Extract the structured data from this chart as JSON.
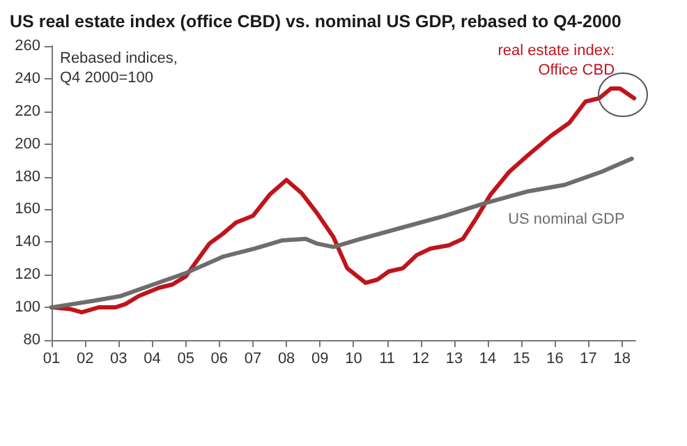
{
  "chart_data": {
    "type": "line",
    "title": "US real estate index (office CBD) vs. nominal US GDP, rebased to Q4-2000",
    "annotations": [
      "Rebased indices,\nQ4 2000=100"
    ],
    "xlim": [
      2001,
      2018.4
    ],
    "xticks": [
      {
        "value": 2001,
        "label": "01"
      },
      {
        "value": 2002,
        "label": "02"
      },
      {
        "value": 2003,
        "label": "03"
      },
      {
        "value": 2004,
        "label": "04"
      },
      {
        "value": 2005,
        "label": "05"
      },
      {
        "value": 2006,
        "label": "06"
      },
      {
        "value": 2007,
        "label": "07"
      },
      {
        "value": 2008,
        "label": "08"
      },
      {
        "value": 2009,
        "label": "09"
      },
      {
        "value": 2010,
        "label": "10"
      },
      {
        "value": 2011,
        "label": "11"
      },
      {
        "value": 2012,
        "label": "12"
      },
      {
        "value": 2013,
        "label": "13"
      },
      {
        "value": 2014,
        "label": "14"
      },
      {
        "value": 2015,
        "label": "15"
      },
      {
        "value": 2016,
        "label": "16"
      },
      {
        "value": 2017,
        "label": "17"
      },
      {
        "value": 2018,
        "label": "18"
      }
    ],
    "ylim": [
      80,
      260
    ],
    "yticks": [
      80,
      100,
      120,
      140,
      160,
      180,
      200,
      220,
      240,
      260
    ],
    "grid": false,
    "legend": false,
    "marker": "none",
    "line_style": "solid",
    "series": [
      {
        "name": "real estate index: Office CBD",
        "color": "#c0141c",
        "x": [
          2001,
          2001.55,
          2001.9,
          2002.4,
          2002.9,
          2003.2,
          2003.6,
          2004.2,
          2004.6,
          2005.0,
          2005.35,
          2005.7,
          2006.1,
          2006.5,
          2007.0,
          2007.5,
          2008.0,
          2008.45,
          2008.9,
          2009.4,
          2009.81,
          2010.36,
          2010.71,
          2011.05,
          2011.47,
          2011.88,
          2012.29,
          2012.84,
          2013.26,
          2013.67,
          2014.08,
          2014.64,
          2015.19,
          2015.88,
          2016.43,
          2016.91,
          2017.32,
          2017.67,
          2017.94,
          2018.36
        ],
        "values": [
          100,
          99,
          97,
          100,
          100,
          102,
          107,
          112,
          114,
          119,
          129,
          139,
          145,
          152,
          156,
          169,
          178,
          170,
          158,
          143,
          124,
          115,
          117,
          122,
          124,
          132,
          136,
          138,
          142,
          155,
          169,
          183,
          193,
          205,
          213,
          226,
          228,
          234,
          234,
          228
        ]
      },
      {
        "name": "US nominal GDP",
        "color": "#6d6d6d",
        "x": [
          2001,
          2002.24,
          2003.07,
          2004.03,
          2005.0,
          2006.1,
          2007.06,
          2007.88,
          2008.57,
          2008.92,
          2009.4,
          2010.23,
          2011.47,
          2012.71,
          2013.95,
          2015.19,
          2016.29,
          2017.39,
          2018.29
        ],
        "values": [
          100,
          104,
          107,
          114,
          121,
          131,
          136,
          141,
          142,
          139,
          137,
          142,
          149,
          156,
          164,
          171,
          175,
          183,
          191
        ]
      }
    ]
  }
}
